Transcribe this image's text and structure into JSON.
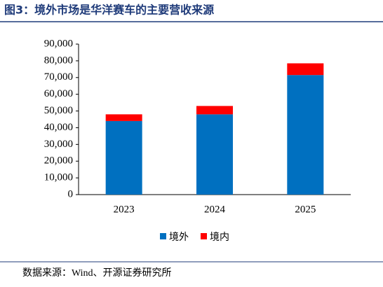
{
  "chart_data": {
    "type": "stacked_bar",
    "title": "图3：境外市场是华洋赛车的主要营收来源",
    "source": "数据来源：Wind、开源证券研究所",
    "categories": [
      "2023",
      "2024",
      "2025"
    ],
    "series": [
      {
        "name": "境外",
        "color": "#0070c0",
        "values": [
          44000,
          48000,
          71500
        ]
      },
      {
        "name": "境内",
        "color": "#ff0000",
        "values": [
          4000,
          5000,
          7000
        ]
      }
    ],
    "ylim": [
      0,
      90000
    ],
    "yticks": [
      0,
      {
        "value": 10000,
        "label": "10,000"
      },
      {
        "value": 20000,
        "label": "20,000"
      },
      {
        "value": 30000,
        "label": "30,000"
      },
      {
        "value": 40000,
        "label": "40,000"
      },
      {
        "value": 50000,
        "label": "50,000"
      },
      {
        "value": 60000,
        "label": "60,000"
      },
      {
        "value": 70000,
        "label": "70,000"
      },
      {
        "value": 80000,
        "label": "80,000"
      },
      {
        "value": 90000,
        "label": "90,000"
      }
    ],
    "legend": "bottom"
  }
}
